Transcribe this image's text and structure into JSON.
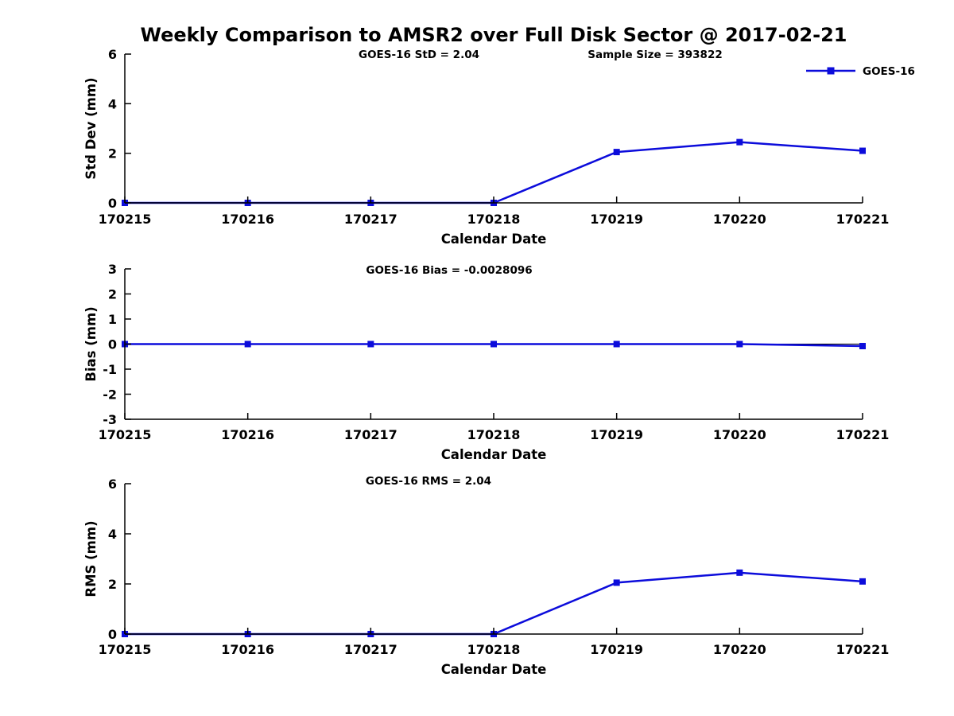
{
  "page_title": "Weekly Comparison to AMSR2 over Full Disk Sector @ 2017-02-21",
  "colors": {
    "series": "#0c0cdb",
    "axis": "#000000",
    "text": "#000000",
    "background": "#ffffff"
  },
  "legend": {
    "label": "GOES-16",
    "marker": "square-icon",
    "position": "outside-top-right"
  },
  "chart_data": [
    {
      "type": "line",
      "name": "std-dev",
      "annotations": [
        "GOES-16 StD = 2.04",
        "Sample Size = 393822"
      ],
      "x": [
        "170215",
        "170216",
        "170217",
        "170218",
        "170219",
        "170220",
        "170221"
      ],
      "series": [
        {
          "name": "GOES-16",
          "values": [
            0,
            0,
            0,
            0,
            2.05,
            2.45,
            2.1
          ],
          "marker": "square"
        }
      ],
      "xlabel": "Calendar Date",
      "ylabel": "Std Dev (mm)",
      "ylim": [
        0,
        6
      ],
      "yticks": [
        0,
        2,
        4,
        6
      ],
      "grid": false,
      "zero_line": false
    },
    {
      "type": "line",
      "name": "bias",
      "annotations": [
        "GOES-16 Bias  = -0.0028096"
      ],
      "x": [
        "170215",
        "170216",
        "170217",
        "170218",
        "170219",
        "170220",
        "170221"
      ],
      "series": [
        {
          "name": "GOES-16",
          "values": [
            0,
            0,
            0,
            0,
            0,
            0,
            -0.08
          ],
          "marker": "square"
        }
      ],
      "xlabel": "Calendar Date",
      "ylabel": "Bias (mm)",
      "ylim": [
        -3,
        3
      ],
      "yticks": [
        -3,
        -2,
        -1,
        0,
        1,
        2,
        3
      ],
      "grid": false,
      "zero_line": true
    },
    {
      "type": "line",
      "name": "rms",
      "annotations": [
        "GOES-16 RMS = 2.04"
      ],
      "x": [
        "170215",
        "170216",
        "170217",
        "170218",
        "170219",
        "170220",
        "170221"
      ],
      "series": [
        {
          "name": "GOES-16",
          "values": [
            0,
            0,
            0,
            0,
            2.05,
            2.45,
            2.1
          ],
          "marker": "square"
        }
      ],
      "xlabel": "Calendar Date",
      "ylabel": "RMS (mm)",
      "ylim": [
        0,
        6
      ],
      "yticks": [
        0,
        2,
        4,
        6
      ],
      "grid": false,
      "zero_line": false
    }
  ]
}
